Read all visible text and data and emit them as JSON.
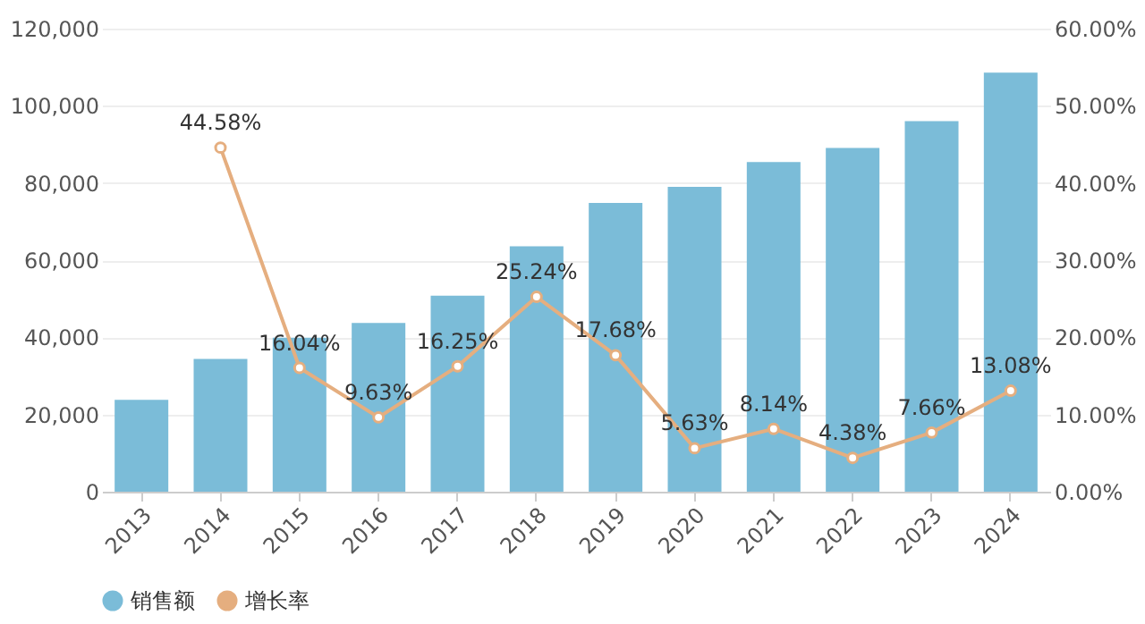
{
  "chart_data": {
    "type": "bar",
    "categories": [
      "2013",
      "2014",
      "2015",
      "2016",
      "2017",
      "2018",
      "2019",
      "2020",
      "2021",
      "2022",
      "2023",
      "2024"
    ],
    "series": [
      {
        "name": "销售额",
        "color": "#7bbcd8",
        "values": [
          23800,
          34400,
          39900,
          43700,
          50800,
          63600,
          74800,
          79000,
          85400,
          89100,
          96000,
          108600
        ]
      },
      {
        "name": "增长率",
        "type": "line",
        "axis": "y2",
        "color": "#e5ae7f",
        "marker": "circle",
        "line_style": "solid",
        "values": [
          null,
          44.58,
          16.04,
          9.63,
          16.25,
          25.24,
          17.68,
          5.63,
          8.14,
          4.38,
          7.66,
          13.08
        ],
        "value_labels": [
          null,
          "44.58%",
          "16.04%",
          "9.63%",
          "16.25%",
          "25.24%",
          "17.68%",
          "5.63%",
          "8.14%",
          "4.38%",
          "7.66%",
          "13.08%"
        ]
      }
    ],
    "ylim": [
      0,
      120000
    ],
    "yticks": [
      0,
      {
        "value": 20000,
        "label": "20,000"
      },
      {
        "value": 40000,
        "label": "40,000"
      },
      {
        "value": 60000,
        "label": "60,000"
      },
      {
        "value": 80000,
        "label": "80,000"
      },
      {
        "value": 100000,
        "label": "100,000"
      },
      {
        "value": 120000,
        "label": "120,000"
      }
    ],
    "y2lim": [
      0,
      60
    ],
    "y2ticks": [
      {
        "value": 0,
        "label": "0.00%"
      },
      {
        "value": 10,
        "label": "10.00%"
      },
      {
        "value": 20,
        "label": "20.00%"
      },
      {
        "value": 30,
        "label": "30.00%"
      },
      {
        "value": 40,
        "label": "40.00%"
      },
      {
        "value": 50,
        "label": "50.00%"
      },
      {
        "value": 60,
        "label": "60.00%"
      }
    ],
    "grid": "y",
    "legend": "bottom"
  }
}
